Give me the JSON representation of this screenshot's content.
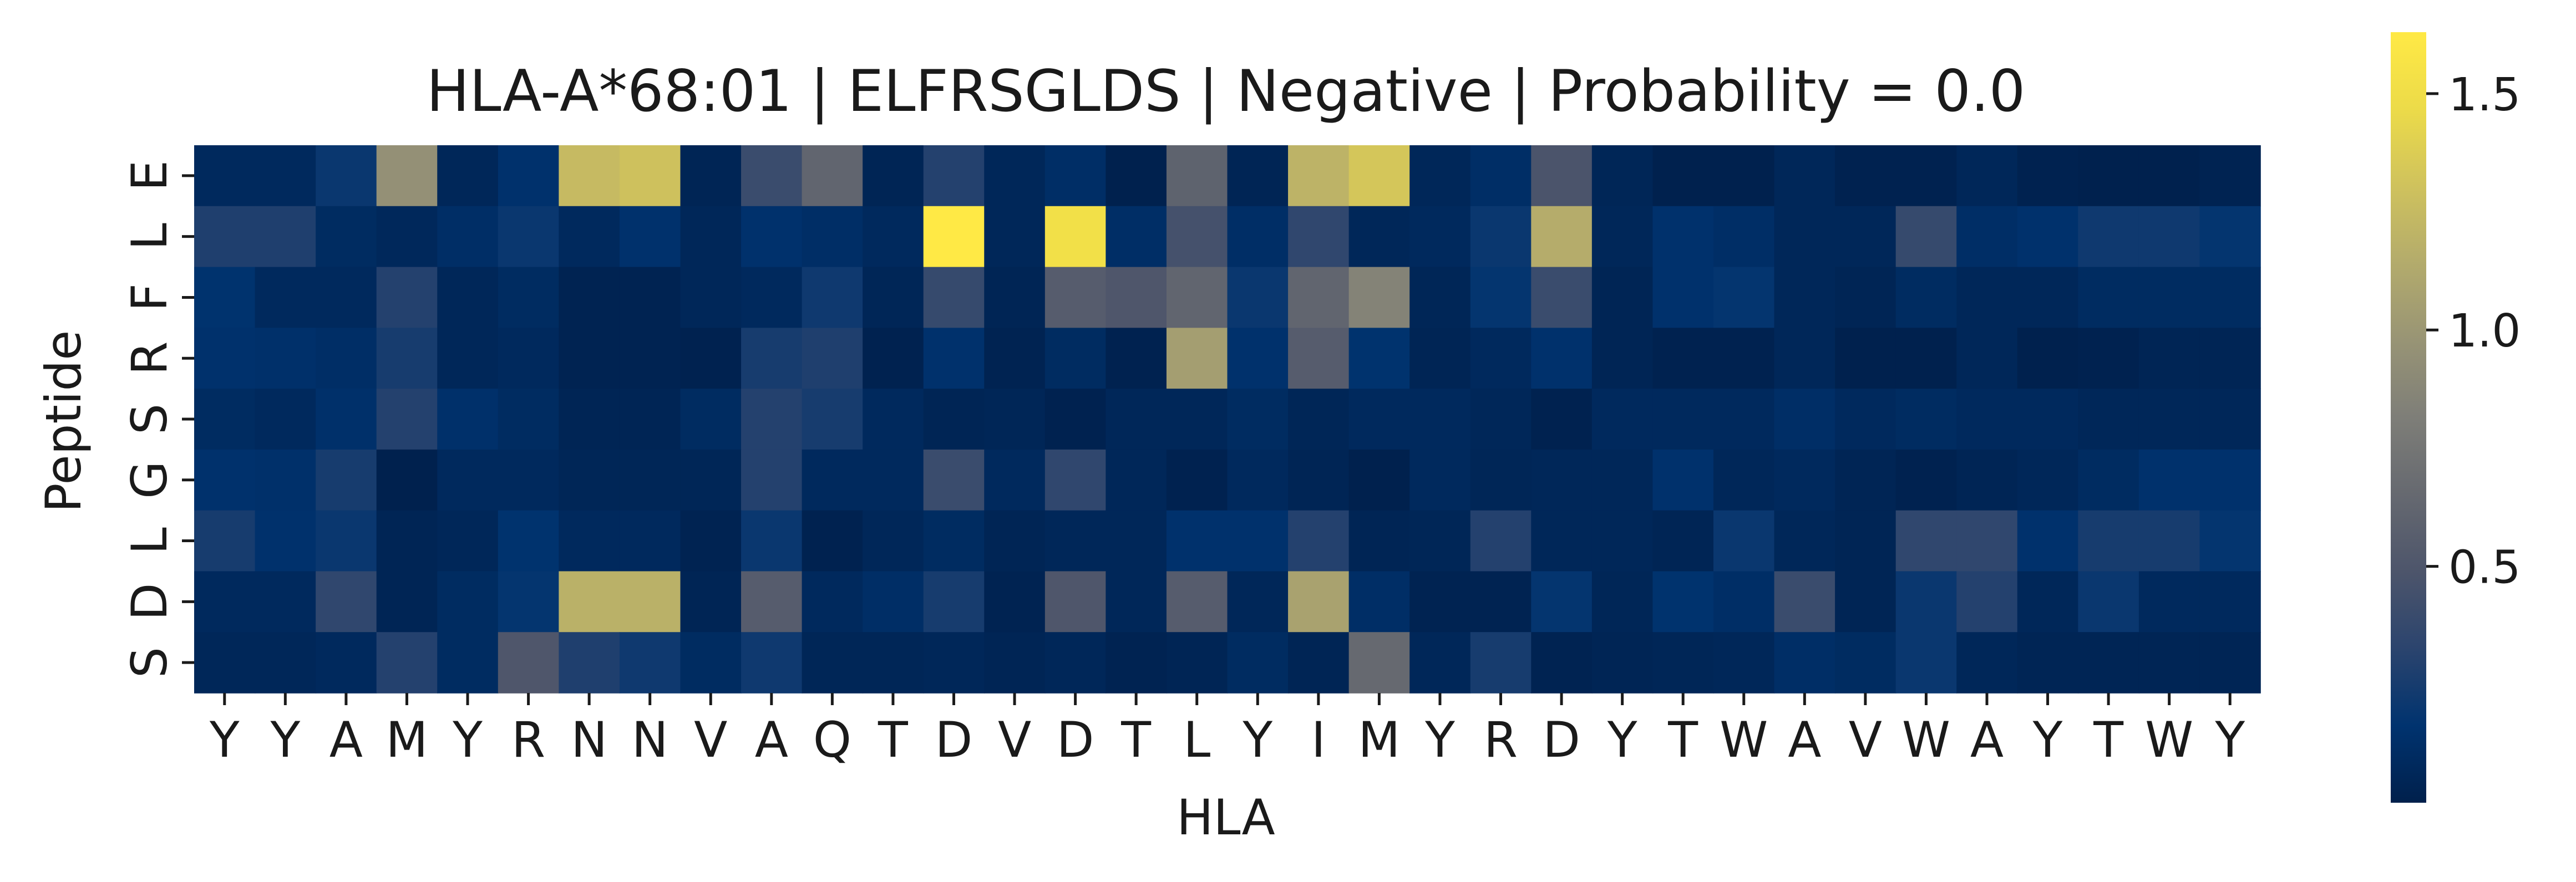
{
  "chart_data": {
    "type": "heatmap",
    "title": "HLA-A*68:01 | ELFRSGLDS | Negative | Probability = 0.0",
    "xlabel": "HLA",
    "ylabel": "Peptide",
    "x_categories": [
      "Y",
      "Y",
      "A",
      "M",
      "Y",
      "R",
      "N",
      "N",
      "V",
      "A",
      "Q",
      "T",
      "D",
      "V",
      "D",
      "T",
      "L",
      "Y",
      "I",
      "M",
      "Y",
      "R",
      "D",
      "Y",
      "T",
      "W",
      "A",
      "V",
      "W",
      "A",
      "Y",
      "T",
      "W",
      "Y"
    ],
    "y_categories": [
      "E",
      "L",
      "F",
      "R",
      "S",
      "G",
      "L",
      "D",
      "S"
    ],
    "values": [
      [
        0.08,
        0.08,
        0.2,
        0.95,
        0.06,
        0.15,
        1.25,
        1.3,
        0.04,
        0.4,
        0.62,
        0.04,
        0.3,
        0.06,
        0.12,
        0.01,
        0.6,
        0.04,
        1.2,
        1.33,
        0.06,
        0.12,
        0.48,
        0.05,
        0.01,
        0.01,
        0.06,
        0.02,
        0.02,
        0.06,
        0.02,
        0.01,
        0.01,
        0.03
      ],
      [
        0.28,
        0.28,
        0.1,
        0.07,
        0.12,
        0.2,
        0.08,
        0.15,
        0.06,
        0.15,
        0.12,
        0.08,
        1.63,
        0.06,
        1.52,
        0.12,
        0.45,
        0.12,
        0.35,
        0.06,
        0.08,
        0.2,
        1.15,
        0.06,
        0.15,
        0.12,
        0.06,
        0.06,
        0.38,
        0.12,
        0.15,
        0.22,
        0.22,
        0.18
      ],
      [
        0.16,
        0.08,
        0.08,
        0.3,
        0.06,
        0.1,
        0.03,
        0.03,
        0.06,
        0.08,
        0.22,
        0.05,
        0.38,
        0.04,
        0.55,
        0.5,
        0.62,
        0.2,
        0.62,
        0.85,
        0.05,
        0.18,
        0.4,
        0.04,
        0.15,
        0.18,
        0.06,
        0.04,
        0.1,
        0.06,
        0.06,
        0.1,
        0.1,
        0.1
      ],
      [
        0.15,
        0.14,
        0.12,
        0.25,
        0.06,
        0.08,
        0.03,
        0.03,
        0.02,
        0.25,
        0.28,
        0.02,
        0.15,
        0.03,
        0.1,
        0.02,
        1.05,
        0.15,
        0.55,
        0.16,
        0.04,
        0.08,
        0.15,
        0.04,
        0.02,
        0.02,
        0.06,
        0.01,
        0.01,
        0.06,
        0.01,
        0.02,
        0.04,
        0.04
      ],
      [
        0.1,
        0.08,
        0.14,
        0.3,
        0.14,
        0.1,
        0.04,
        0.04,
        0.1,
        0.3,
        0.25,
        0.08,
        0.04,
        0.05,
        0.02,
        0.06,
        0.06,
        0.1,
        0.05,
        0.08,
        0.08,
        0.06,
        0.02,
        0.08,
        0.08,
        0.08,
        0.12,
        0.08,
        0.1,
        0.08,
        0.08,
        0.06,
        0.06,
        0.06
      ],
      [
        0.15,
        0.14,
        0.25,
        0.01,
        0.08,
        0.08,
        0.05,
        0.05,
        0.05,
        0.3,
        0.08,
        0.08,
        0.4,
        0.08,
        0.35,
        0.06,
        0.02,
        0.08,
        0.04,
        0.01,
        0.08,
        0.05,
        0.06,
        0.06,
        0.15,
        0.06,
        0.08,
        0.04,
        0.02,
        0.04,
        0.06,
        0.1,
        0.15,
        0.15
      ],
      [
        0.25,
        0.15,
        0.2,
        0.04,
        0.06,
        0.16,
        0.08,
        0.08,
        0.03,
        0.2,
        0.02,
        0.06,
        0.1,
        0.04,
        0.06,
        0.06,
        0.15,
        0.15,
        0.3,
        0.04,
        0.05,
        0.3,
        0.06,
        0.06,
        0.04,
        0.2,
        0.06,
        0.04,
        0.35,
        0.35,
        0.15,
        0.25,
        0.25,
        0.18
      ],
      [
        0.08,
        0.08,
        0.35,
        0.04,
        0.1,
        0.18,
        1.18,
        1.18,
        0.04,
        0.55,
        0.08,
        0.12,
        0.25,
        0.03,
        0.5,
        0.06,
        0.55,
        0.06,
        1.08,
        0.12,
        0.03,
        0.03,
        0.18,
        0.05,
        0.16,
        0.12,
        0.4,
        0.04,
        0.2,
        0.3,
        0.06,
        0.2,
        0.08,
        0.08
      ],
      [
        0.06,
        0.06,
        0.08,
        0.3,
        0.1,
        0.5,
        0.28,
        0.22,
        0.1,
        0.22,
        0.05,
        0.05,
        0.06,
        0.04,
        0.06,
        0.03,
        0.04,
        0.1,
        0.04,
        0.65,
        0.06,
        0.25,
        0.03,
        0.04,
        0.05,
        0.06,
        0.12,
        0.1,
        0.2,
        0.06,
        0.04,
        0.04,
        0.04,
        0.04
      ]
    ],
    "zlim": [
      0.0,
      1.63
    ],
    "colormap": "cividis",
    "colorbar_ticks": [
      0.5,
      1.0,
      1.5
    ],
    "colorbar_tick_labels": [
      "0.5",
      "1.0",
      "1.5"
    ]
  }
}
